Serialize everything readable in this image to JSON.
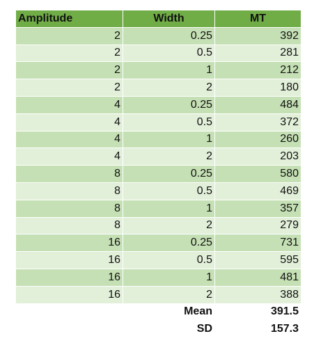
{
  "headers": [
    "Amplitude",
    "Width",
    "MT"
  ],
  "rows": [
    [
      "2",
      "0.25",
      "392"
    ],
    [
      "2",
      "0.5",
      "281"
    ],
    [
      "2",
      "1",
      "212"
    ],
    [
      "2",
      "2",
      "180"
    ],
    [
      "4",
      "0.25",
      "484"
    ],
    [
      "4",
      "0.5",
      "372"
    ],
    [
      "4",
      "1",
      "260"
    ],
    [
      "4",
      "2",
      "203"
    ],
    [
      "8",
      "0.25",
      "580"
    ],
    [
      "8",
      "0.5",
      "469"
    ],
    [
      "8",
      "1",
      "357"
    ],
    [
      "8",
      "2",
      "279"
    ],
    [
      "16",
      "0.25",
      "731"
    ],
    [
      "16",
      "0.5",
      "595"
    ],
    [
      "16",
      "1",
      "481"
    ],
    [
      "16",
      "2",
      "388"
    ]
  ],
  "summary": [
    {
      "label": "Mean",
      "value": "391.5"
    },
    {
      "label": "SD",
      "value": "157.3"
    }
  ],
  "colors": {
    "header": "#70ad47",
    "band_dark": "#c5e0b4",
    "band_light": "#e2efd9"
  }
}
